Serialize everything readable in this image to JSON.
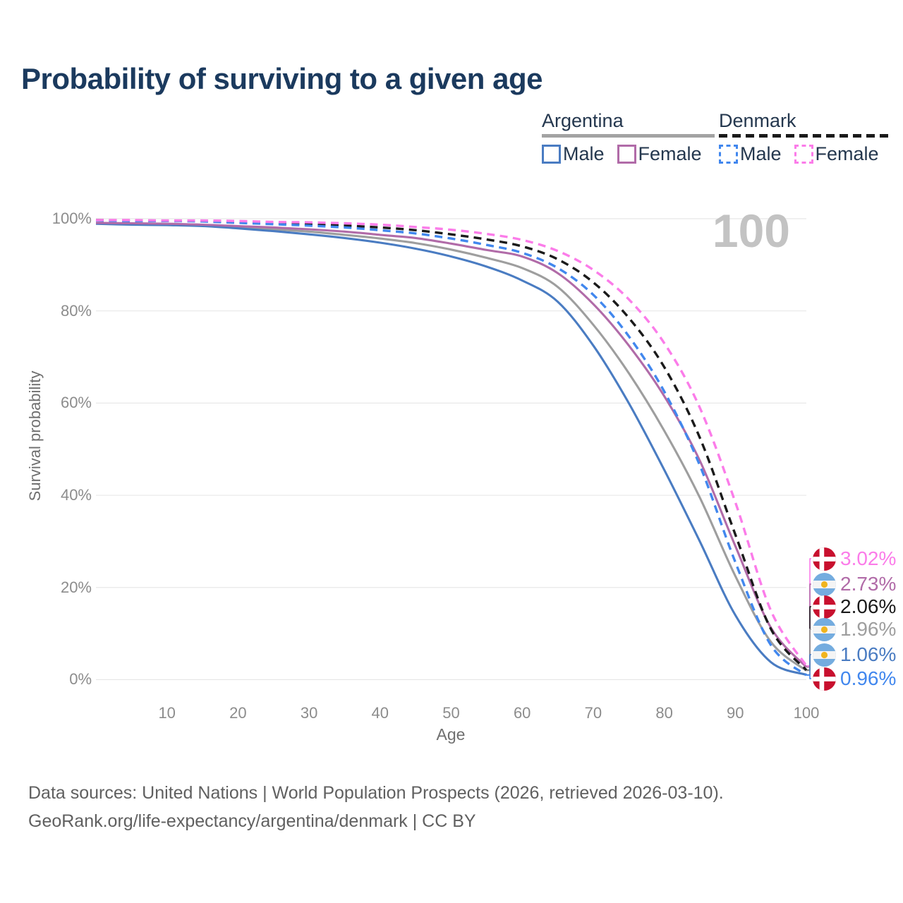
{
  "title": "Probability of surviving to a given age",
  "hovered_age": "100",
  "legend": {
    "groups": [
      {
        "name": "Argentina",
        "line_style": "solid",
        "underline_color": "#a3a3a3",
        "items": [
          {
            "label": "Male",
            "color": "#4a7cc2"
          },
          {
            "label": "Female",
            "color": "#b16ba8"
          }
        ]
      },
      {
        "name": "Denmark",
        "line_style": "dashed",
        "underline_color": "#1a1a1a",
        "items": [
          {
            "label": "Male",
            "color": "#4187ee"
          },
          {
            "label": "Female",
            "color": "#fb7ce9"
          }
        ]
      }
    ]
  },
  "axes": {
    "y_title": "Survival probability",
    "x_title": "Age",
    "y_ticks": [
      {
        "label": "0%",
        "value": 0
      },
      {
        "label": "20%",
        "value": 20
      },
      {
        "label": "40%",
        "value": 40
      },
      {
        "label": "60%",
        "value": 60
      },
      {
        "label": "80%",
        "value": 80
      },
      {
        "label": "100%",
        "value": 100
      }
    ],
    "x_ticks": [
      {
        "label": "10",
        "value": 10
      },
      {
        "label": "20",
        "value": 20
      },
      {
        "label": "30",
        "value": 30
      },
      {
        "label": "40",
        "value": 40
      },
      {
        "label": "50",
        "value": 50
      },
      {
        "label": "60",
        "value": 60
      },
      {
        "label": "70",
        "value": 70
      },
      {
        "label": "80",
        "value": 80
      },
      {
        "label": "90",
        "value": 90
      },
      {
        "label": "100",
        "value": 100
      }
    ]
  },
  "chart_data": {
    "type": "line",
    "title": "Probability of surviving to a given age",
    "xlabel": "Age",
    "ylabel": "Survival probability",
    "xlim": [
      0,
      100
    ],
    "ylim": [
      0,
      100
    ],
    "grid": "horizontal-only",
    "legend_position": "top-right",
    "hovered_age": 100,
    "x": [
      0,
      5,
      10,
      15,
      20,
      25,
      30,
      35,
      40,
      45,
      50,
      55,
      60,
      65,
      70,
      75,
      80,
      85,
      90,
      95,
      100
    ],
    "series": [
      {
        "id": "argentina-both",
        "name": "Argentina",
        "country": "Argentina",
        "sex": "both",
        "color": "#9e9e9e",
        "dashed": false,
        "flag": "ar",
        "end_label": "1.96%",
        "values": [
          99.0,
          98.9,
          98.8,
          98.6,
          98.2,
          97.7,
          97.2,
          96.5,
          95.7,
          94.7,
          93.3,
          91.5,
          89.3,
          85.2,
          77.0,
          66.5,
          54.0,
          39.5,
          22.5,
          8.2,
          1.96
        ]
      },
      {
        "id": "argentina-male",
        "name": "Argentina Male",
        "country": "Argentina",
        "sex": "male",
        "color": "#4a7cc2",
        "dashed": false,
        "flag": "ar",
        "end_label": "1.06%",
        "values": [
          98.9,
          98.7,
          98.6,
          98.4,
          97.9,
          97.3,
          96.6,
          95.8,
          94.8,
          93.5,
          91.8,
          89.6,
          86.6,
          82.0,
          72.5,
          60.0,
          45.5,
          30.0,
          14.0,
          3.8,
          1.06
        ]
      },
      {
        "id": "argentina-female",
        "name": "Argentina Female",
        "country": "Argentina",
        "sex": "female",
        "color": "#b16ba8",
        "dashed": false,
        "flag": "ar",
        "end_label": "2.73%",
        "values": [
          99.1,
          99.0,
          98.9,
          98.7,
          98.4,
          98.1,
          97.7,
          97.2,
          96.5,
          95.8,
          94.6,
          93.2,
          91.8,
          88.2,
          81.5,
          72.5,
          61.5,
          47.5,
          29.0,
          11.3,
          2.73
        ]
      },
      {
        "id": "denmark-both",
        "name": "Denmark",
        "country": "Denmark",
        "sex": "both",
        "color": "#1a1a1a",
        "dashed": true,
        "flag": "dk",
        "end_label": "2.06%",
        "values": [
          99.7,
          99.6,
          99.5,
          99.5,
          99.3,
          99.1,
          98.8,
          98.5,
          98.1,
          97.5,
          96.6,
          95.5,
          94.0,
          91.2,
          86.2,
          78.5,
          67.8,
          52.5,
          31.5,
          11.0,
          2.06
        ]
      },
      {
        "id": "denmark-male",
        "name": "Denmark Male",
        "country": "Denmark",
        "sex": "male",
        "color": "#4187ee",
        "dashed": true,
        "flag": "dk",
        "end_label": "0.96%",
        "values": [
          99.6,
          99.5,
          99.5,
          99.4,
          99.1,
          98.8,
          98.5,
          98.1,
          97.5,
          96.8,
          95.7,
          94.3,
          92.6,
          89.3,
          83.5,
          74.5,
          62.5,
          46.5,
          25.5,
          7.5,
          0.96
        ]
      },
      {
        "id": "denmark-female",
        "name": "Denmark Female",
        "country": "Denmark",
        "sex": "female",
        "color": "#fb7ce9",
        "dashed": true,
        "flag": "dk",
        "end_label": "3.02%",
        "values": [
          99.7,
          99.7,
          99.6,
          99.6,
          99.5,
          99.3,
          99.2,
          99.0,
          98.7,
          98.2,
          97.6,
          96.7,
          95.4,
          93.0,
          88.9,
          82.5,
          73.0,
          59.0,
          38.5,
          15.0,
          3.02
        ]
      }
    ],
    "end_labels": [
      {
        "series": "denmark-female",
        "label": "3.02%",
        "color": "#fb7ce9",
        "flag": "dk"
      },
      {
        "series": "argentina-female",
        "label": "2.73%",
        "color": "#b16ba8",
        "flag": "ar"
      },
      {
        "series": "denmark-both",
        "label": "2.06%",
        "color": "#1a1a1a",
        "flag": "dk"
      },
      {
        "series": "argentina-both",
        "label": "1.96%",
        "color": "#9e9e9e",
        "flag": "ar"
      },
      {
        "series": "argentina-male",
        "label": "1.06%",
        "color": "#4a7cc2",
        "flag": "ar"
      },
      {
        "series": "denmark-male",
        "label": "0.96%",
        "color": "#4187ee",
        "flag": "dk"
      }
    ]
  },
  "colors": {
    "title": "#1b3a5e",
    "grid": "#e8e8e8",
    "axis_text": "#8c8c8c",
    "hovered_age_text": "#c3c3c3",
    "denmark_flag_red": "#c8102e",
    "argentina_flag_blue": "#74acdf",
    "argentina_sun_gold": "#f0b41e"
  },
  "footer": {
    "line1": "Data sources: United Nations | World Population Prospects (2026, retrieved 2026-03-10).",
    "line2": "GeoRank.org/life-expectancy/argentina/denmark | CC BY"
  }
}
